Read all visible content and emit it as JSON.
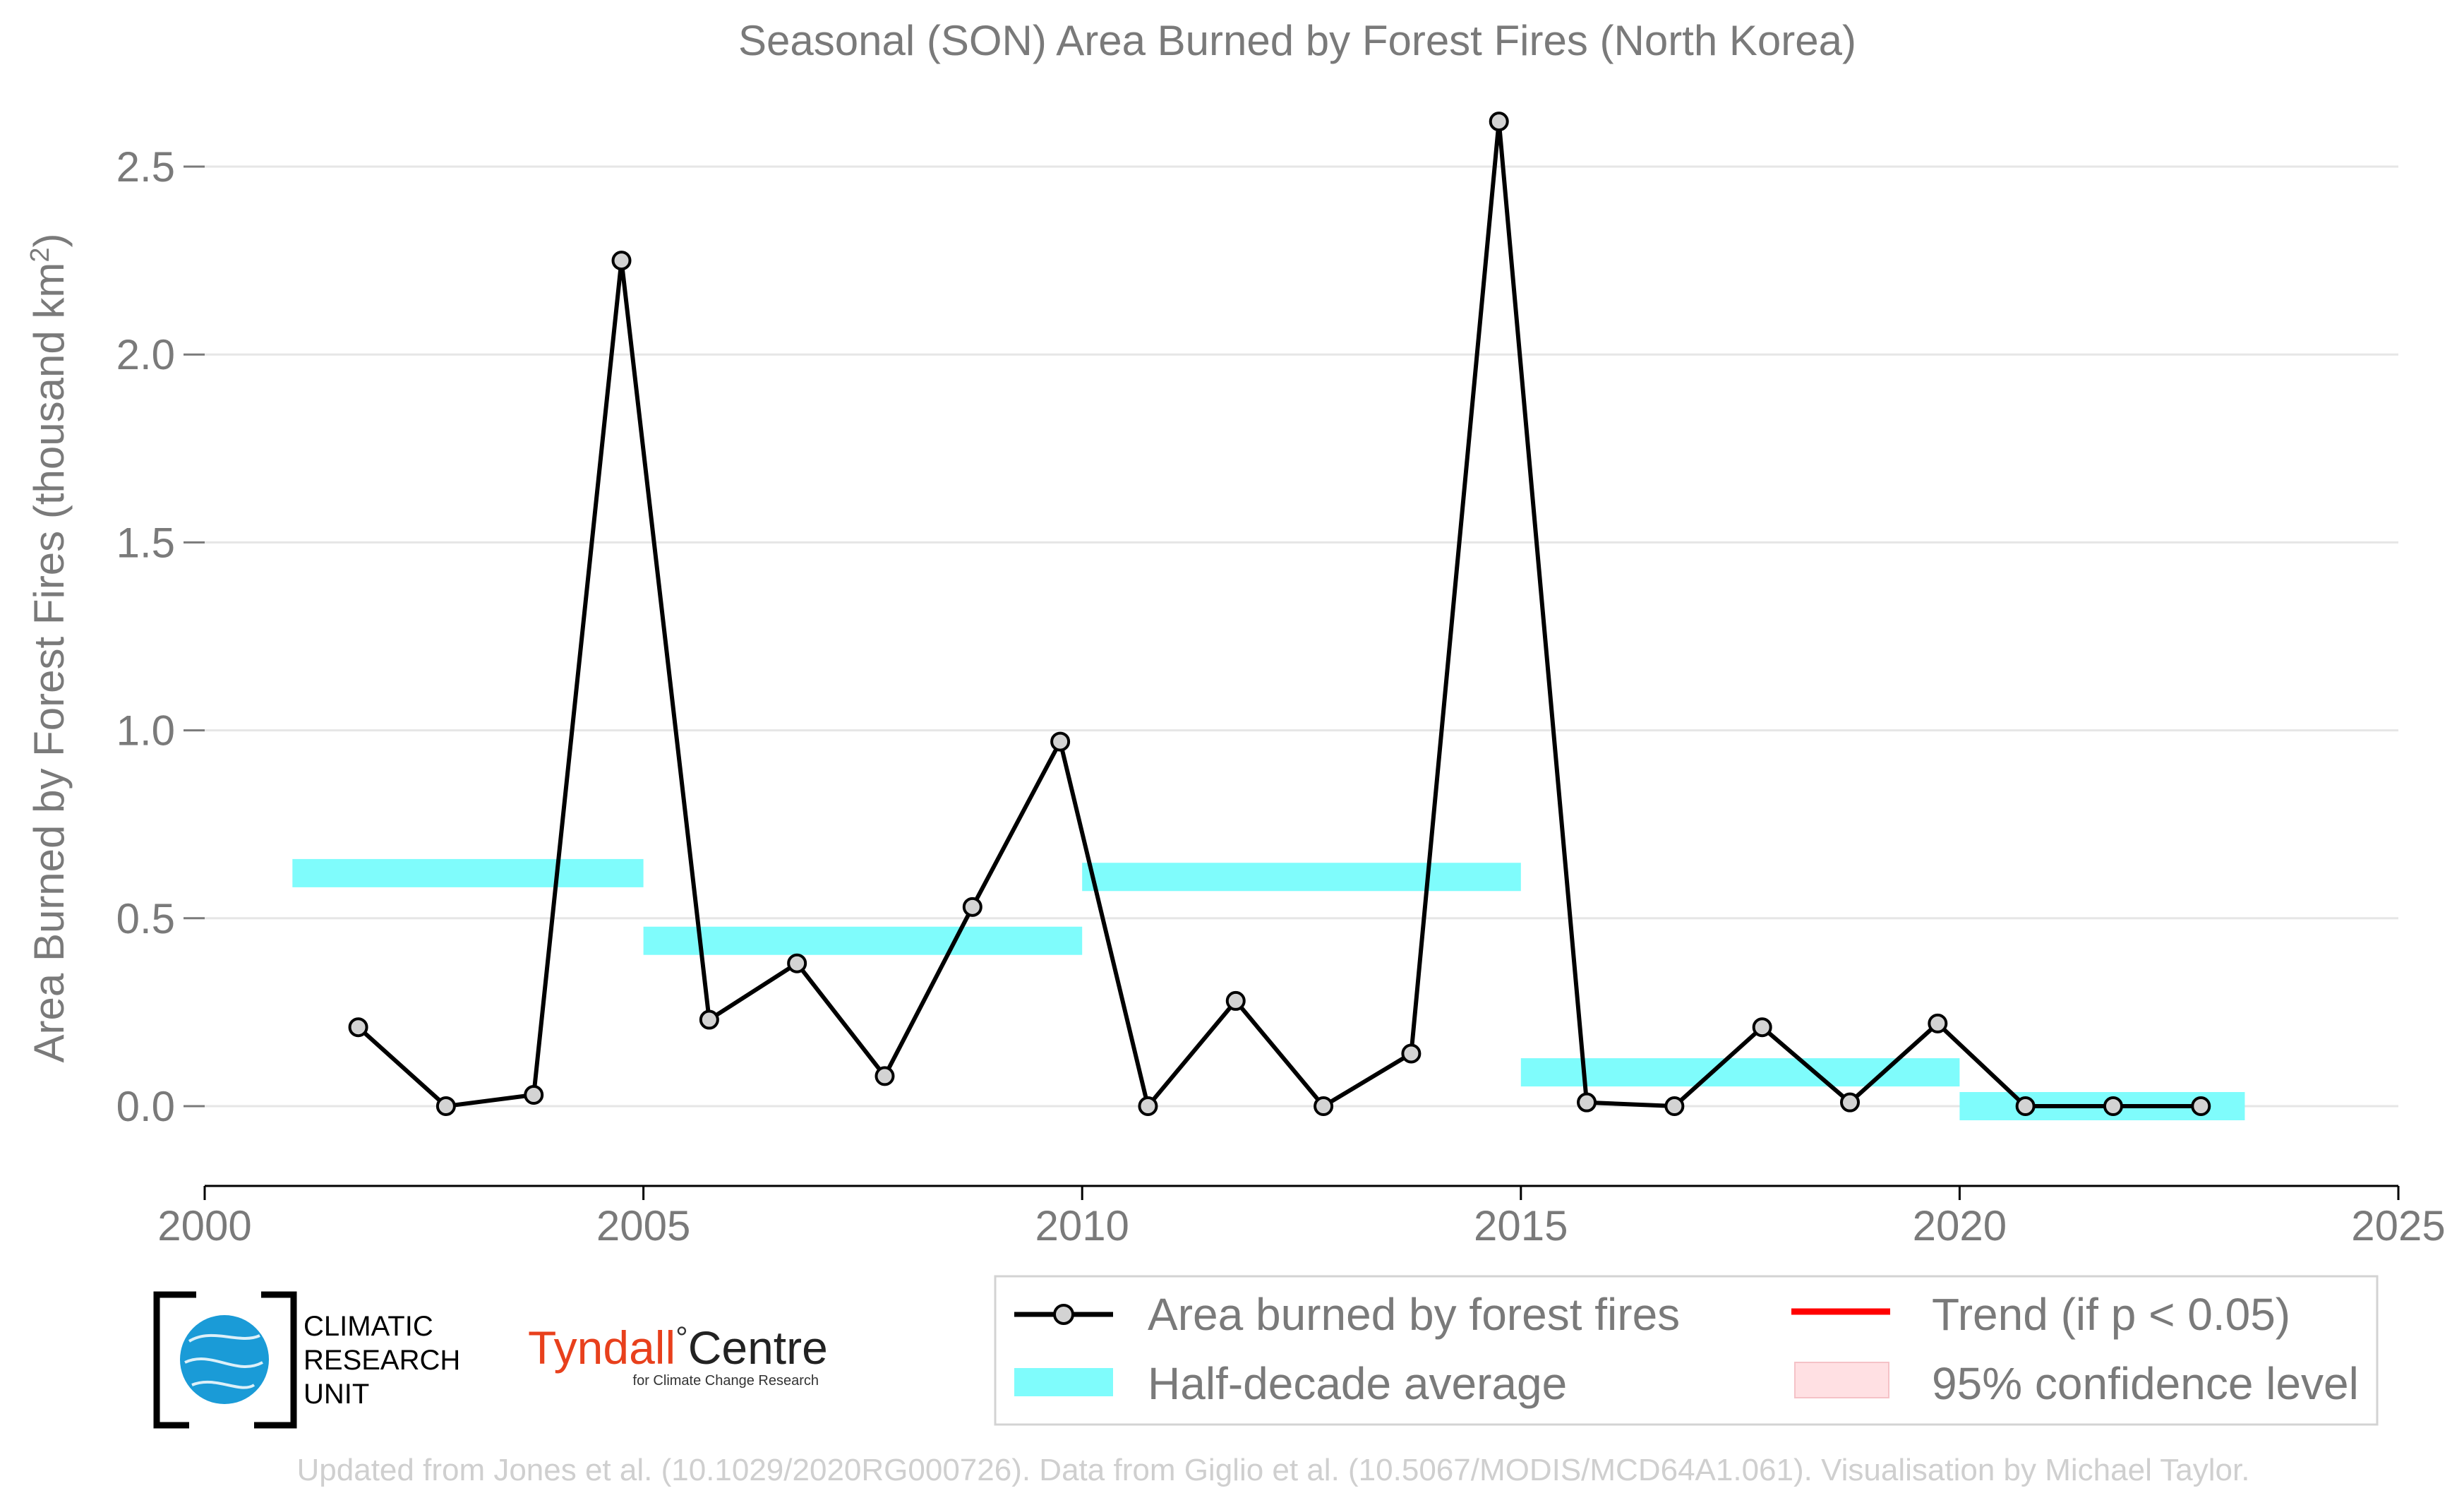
{
  "chart_data": {
    "type": "line",
    "title": "Seasonal (SON) Area Burned by Forest Fires (North Korea)",
    "ylabel_main": "Area Burned by Forest Fires (thousand km",
    "ylabel_sup": "2",
    "ylabel_close": ")",
    "xlim": [
      2000,
      2025
    ],
    "ylim": [
      -0.2,
      2.6
    ],
    "x_ticks": [
      2000,
      2005,
      2010,
      2015,
      2020,
      2025
    ],
    "x_tick_labels": [
      "2000",
      "2005",
      "2010",
      "2015",
      "2020",
      "2025"
    ],
    "y_ticks": [
      0.0,
      0.5,
      1.0,
      1.5,
      2.0,
      2.5
    ],
    "y_tick_labels": [
      "0.0",
      "0.5",
      "1.0",
      "1.5",
      "2.0",
      "2.5"
    ],
    "grid": "horizontal",
    "series": [
      {
        "name": "Area burned by forest fires",
        "color": "#000000",
        "marker_fill": "#d3d3d3",
        "x": [
          2001.75,
          2002.75,
          2003.75,
          2004.75,
          2005.75,
          2006.75,
          2007.75,
          2008.75,
          2009.75,
          2010.75,
          2011.75,
          2012.75,
          2013.75,
          2014.75,
          2015.75,
          2016.75,
          2017.75,
          2018.75,
          2019.75,
          2020.75,
          2021.75,
          2022.75
        ],
        "y": [
          0.21,
          0.0,
          0.03,
          2.25,
          0.23,
          0.38,
          0.08,
          0.53,
          0.97,
          0.0,
          0.28,
          0.0,
          0.14,
          2.62,
          0.01,
          0.0,
          0.21,
          0.01,
          0.22,
          0.0,
          0.0,
          0.0
        ]
      }
    ],
    "half_decade_average": {
      "name": "Half-decade average",
      "color": "#7ffcfc",
      "segments": [
        {
          "x_start": 2001.0,
          "x_end": 2005.0,
          "y": 0.62
        },
        {
          "x_start": 2005.0,
          "x_end": 2010.0,
          "y": 0.44
        },
        {
          "x_start": 2010.0,
          "x_end": 2015.0,
          "y": 0.61
        },
        {
          "x_start": 2015.0,
          "x_end": 2020.0,
          "y": 0.09
        },
        {
          "x_start": 2020.0,
          "x_end": 2023.25,
          "y": 0.0
        }
      ]
    },
    "legend": {
      "placement": "bottom-right",
      "entries": [
        {
          "label": "Area burned by forest fires",
          "kind": "line-marker",
          "color": "#000000"
        },
        {
          "label": "Trend (if p < 0.05)",
          "kind": "line",
          "color": "#ff0000"
        },
        {
          "label": "Half-decade average",
          "kind": "band",
          "color": "#7ffcfc"
        },
        {
          "label": "95% confidence level",
          "kind": "patch",
          "color": "#ffe0e3"
        }
      ]
    },
    "credit": "Updated from Jones et al. (10.1029/2020RG000726). Data from Giglio et al. (10.5067/MODIS/MCD64A1.061). Visualisation by Michael Taylor."
  },
  "logos": {
    "cru_lines": [
      "CLIMATIC",
      "RESEARCH",
      "UNIT"
    ],
    "tyndall_left": "Tyndall",
    "tyndall_degree": "°",
    "tyndall_right": "Centre",
    "tyndall_sub": "for Climate Change Research",
    "colors": {
      "cru_blue": "#1a9bd7",
      "tyndall_red": "#e8401c"
    }
  }
}
